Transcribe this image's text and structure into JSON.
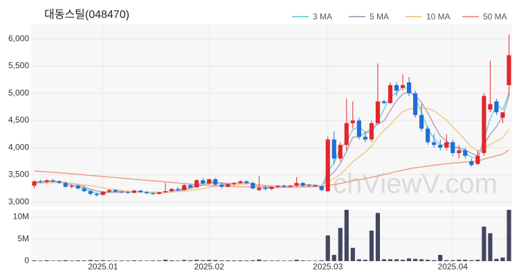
{
  "chart_data": {
    "type": "candlestick",
    "title": "대동스틸(048470)",
    "watermark": "chViewV.com",
    "up_color": "#e3262b",
    "down_color": "#1d6fd8",
    "categories": [
      null,
      null,
      null,
      null,
      null,
      null,
      null,
      null,
      null,
      null,
      null,
      "2025.01",
      null,
      null,
      null,
      null,
      null,
      null,
      null,
      null,
      null,
      null,
      null,
      null,
      null,
      null,
      null,
      null,
      "2025.02",
      null,
      null,
      null,
      null,
      null,
      null,
      null,
      null,
      null,
      null,
      null,
      null,
      null,
      null,
      null,
      null,
      null,
      null,
      "2025.03",
      null,
      null,
      null,
      null,
      null,
      null,
      null,
      null,
      null,
      null,
      null,
      null,
      null,
      null,
      null,
      null,
      null,
      null,
      null,
      "2025.04",
      null,
      null,
      null,
      null,
      null,
      null,
      null,
      null,
      null
    ],
    "open": [
      3300,
      3380,
      3370,
      3400,
      3380,
      3350,
      3280,
      3300,
      3250,
      3200,
      3150,
      3130,
      3190,
      3220,
      3190,
      3180,
      3170,
      3210,
      3180,
      3160,
      3150,
      3180,
      3200,
      3240,
      3220,
      3310,
      3270,
      3400,
      3340,
      3420,
      3320,
      3280,
      3330,
      3350,
      3380,
      3350,
      3220,
      3260,
      3240,
      3280,
      3300,
      3280,
      3300,
      3350,
      3300,
      3310,
      3290,
      3200,
      4150,
      3800,
      4050,
      4450,
      4500,
      4200,
      4150,
      4450,
      4850,
      4820,
      5150,
      5100,
      5200,
      5000,
      4600,
      4350,
      4100,
      4050,
      4000,
      4100,
      3900,
      3950,
      3750,
      3700,
      3900,
      4700,
      4850,
      4550,
      5150
    ],
    "high": [
      3400,
      3410,
      3420,
      3420,
      3400,
      3380,
      3330,
      3320,
      3300,
      3220,
      3170,
      3200,
      3230,
      3240,
      3210,
      3200,
      3230,
      3220,
      3200,
      3180,
      3190,
      3350,
      3260,
      3280,
      3330,
      3340,
      3420,
      3440,
      3430,
      3440,
      3350,
      3340,
      3370,
      3400,
      3400,
      3380,
      3480,
      3300,
      3290,
      3310,
      3320,
      3310,
      3460,
      3370,
      3330,
      3320,
      3310,
      4200,
      4300,
      4100,
      4900,
      4850,
      4550,
      4300,
      4500,
      5550,
      4880,
      5200,
      5200,
      5350,
      5300,
      5050,
      4800,
      4400,
      4250,
      4150,
      4250,
      4150,
      4050,
      4000,
      3800,
      3950,
      5000,
      5600,
      4900,
      4650,
      6080
    ],
    "low": [
      3250,
      3350,
      3340,
      3360,
      3340,
      3270,
      3250,
      3230,
      3180,
      3120,
      3100,
      3120,
      3170,
      3180,
      3160,
      3150,
      3160,
      3170,
      3150,
      3130,
      3140,
      3170,
      3180,
      3200,
      3210,
      3250,
      3260,
      3320,
      3320,
      3300,
      3250,
      3270,
      3300,
      3330,
      3330,
      3230,
      3200,
      3210,
      3220,
      3260,
      3270,
      3270,
      3280,
      3280,
      3280,
      3270,
      3200,
      3180,
      3700,
      3750,
      3950,
      4350,
      4150,
      4100,
      4100,
      4450,
      4800,
      4800,
      4950,
      5050,
      4950,
      4550,
      4300,
      4050,
      4000,
      3950,
      3950,
      3850,
      3800,
      3800,
      3650,
      3680,
      3850,
      4650,
      4600,
      4450,
      4950
    ],
    "close": [
      3380,
      3370,
      3400,
      3380,
      3350,
      3280,
      3300,
      3250,
      3200,
      3150,
      3130,
      3190,
      3220,
      3190,
      3180,
      3170,
      3210,
      3180,
      3160,
      3150,
      3180,
      3200,
      3240,
      3220,
      3310,
      3270,
      3400,
      3340,
      3420,
      3320,
      3280,
      3330,
      3350,
      3380,
      3350,
      3250,
      3260,
      3240,
      3280,
      3300,
      3280,
      3300,
      3350,
      3300,
      3310,
      3290,
      3220,
      4150,
      3800,
      4050,
      4450,
      4500,
      4200,
      4150,
      4450,
      4850,
      4820,
      5150,
      5050,
      5150,
      5000,
      4600,
      4350,
      4100,
      4050,
      4000,
      4100,
      3900,
      3950,
      3850,
      3680,
      3850,
      4950,
      4800,
      4650,
      4650,
      5700
    ],
    "series": [
      {
        "name": "3 MA",
        "color": "#7fd3d6",
        "values": [
          3370,
          3375,
          3383,
          3383,
          3377,
          3337,
          3310,
          3277,
          3250,
          3200,
          3160,
          3157,
          3180,
          3200,
          3197,
          3180,
          3187,
          3187,
          3183,
          3163,
          3163,
          3177,
          3207,
          3220,
          3257,
          3267,
          3327,
          3337,
          3387,
          3360,
          3340,
          3310,
          3320,
          3353,
          3360,
          3327,
          3287,
          3250,
          3260,
          3273,
          3287,
          3293,
          3310,
          3317,
          3320,
          3300,
          3273,
          3553,
          3723,
          4000,
          4100,
          4333,
          4383,
          4283,
          4267,
          4483,
          4707,
          4940,
          5007,
          5117,
          5067,
          4917,
          4650,
          4350,
          4167,
          4050,
          4050,
          4000,
          3983,
          3900,
          3827,
          3793,
          4160,
          4533,
          4800,
          4700,
          5000
        ]
      },
      {
        "name": "5 MA",
        "color": "#b3a5c0",
        "values": [
          3360,
          3365,
          3375,
          3378,
          3376,
          3356,
          3342,
          3312,
          3276,
          3236,
          3206,
          3184,
          3178,
          3176,
          3182,
          3190,
          3194,
          3186,
          3180,
          3174,
          3176,
          3174,
          3186,
          3198,
          3230,
          3248,
          3288,
          3308,
          3348,
          3350,
          3352,
          3338,
          3340,
          3332,
          3338,
          3332,
          3318,
          3296,
          3276,
          3266,
          3272,
          3280,
          3302,
          3306,
          3308,
          3310,
          3294,
          3454,
          3554,
          3702,
          3934,
          4190,
          4200,
          4270,
          4350,
          4430,
          4494,
          4684,
          4864,
          4984,
          5034,
          4950,
          4830,
          4640,
          4420,
          4220,
          4120,
          4030,
          4000,
          3960,
          3896,
          3846,
          4056,
          4246,
          4386,
          4580,
          4950
        ]
      },
      {
        "name": "10 MA",
        "color": "#f2c994",
        "values": [
          3340,
          3345,
          3350,
          3355,
          3360,
          3355,
          3345,
          3330,
          3315,
          3300,
          3280,
          3260,
          3240,
          3225,
          3210,
          3200,
          3195,
          3190,
          3185,
          3180,
          3180,
          3180,
          3185,
          3190,
          3200,
          3210,
          3230,
          3245,
          3270,
          3285,
          3300,
          3310,
          3320,
          3330,
          3335,
          3330,
          3320,
          3310,
          3300,
          3295,
          3295,
          3295,
          3300,
          3300,
          3300,
          3300,
          3295,
          3380,
          3430,
          3510,
          3620,
          3740,
          3830,
          3920,
          4030,
          4190,
          4320,
          4420,
          4550,
          4660,
          4710,
          4720,
          4730,
          4720,
          4680,
          4590,
          4510,
          4380,
          4270,
          4140,
          4010,
          3940,
          3990,
          4060,
          4120,
          4180,
          4340
        ]
      },
      {
        "name": "50 MA",
        "color": "#f2a08e",
        "values": [
          3570,
          3563,
          3555,
          3547,
          3538,
          3530,
          3520,
          3510,
          3500,
          3490,
          3480,
          3470,
          3460,
          3450,
          3440,
          3430,
          3420,
          3410,
          3400,
          3390,
          3380,
          3370,
          3360,
          3350,
          3340,
          3330,
          3320,
          3310,
          3305,
          3300,
          3295,
          3290,
          3285,
          3282,
          3280,
          3278,
          3276,
          3274,
          3272,
          3270,
          3270,
          3270,
          3272,
          3275,
          3278,
          3282,
          3285,
          3305,
          3320,
          3340,
          3365,
          3390,
          3410,
          3430,
          3455,
          3480,
          3505,
          3530,
          3560,
          3585,
          3610,
          3630,
          3645,
          3660,
          3675,
          3690,
          3705,
          3715,
          3725,
          3735,
          3745,
          3755,
          3790,
          3820,
          3850,
          3880,
          3960
        ]
      }
    ],
    "ylim": [
      2920,
      6270
    ],
    "yticks": [
      {
        "value": 3000,
        "label": "3,000"
      },
      {
        "value": 3500,
        "label": "3,500"
      },
      {
        "value": 4000,
        "label": "4,000"
      },
      {
        "value": 4500,
        "label": "4,500"
      },
      {
        "value": 5000,
        "label": "5,000"
      },
      {
        "value": 5500,
        "label": "5,500"
      },
      {
        "value": 6000,
        "label": "6,000"
      }
    ],
    "grid": true,
    "legend": "top-right",
    "volume": {
      "color": "#434660",
      "ylim": [
        0,
        11600000
      ],
      "yticks": [
        0,
        {
          "value": 5000000,
          "label": "5M"
        },
        {
          "value": 10000000,
          "label": "10M"
        }
      ],
      "values": [
        150000,
        120000,
        180000,
        100000,
        130000,
        200000,
        110000,
        160000,
        140000,
        220000,
        150000,
        180000,
        120000,
        100000,
        130000,
        110000,
        170000,
        120000,
        100000,
        140000,
        130000,
        300000,
        160000,
        120000,
        250000,
        180000,
        280000,
        200000,
        260000,
        220000,
        150000,
        170000,
        140000,
        160000,
        130000,
        190000,
        350000,
        140000,
        120000,
        110000,
        100000,
        120000,
        300000,
        150000,
        110000,
        100000,
        180000,
        5800000,
        1400000,
        7500000,
        11600000,
        3000000,
        400000,
        300000,
        6900000,
        10900000,
        400000,
        400000,
        400000,
        300000,
        600000,
        500000,
        400000,
        300000,
        200000,
        1400000,
        200000,
        200000,
        300000,
        300000,
        200000,
        300000,
        7800000,
        6300000,
        500000,
        800000,
        11600000
      ]
    }
  }
}
